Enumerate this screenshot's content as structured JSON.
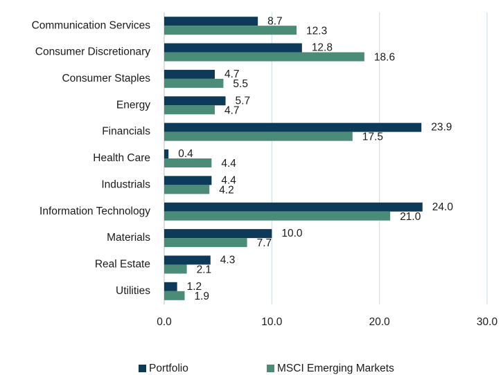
{
  "chart_data": {
    "type": "hbar",
    "categories": [
      "Communication Services",
      "Consumer Discretionary",
      "Consumer Staples",
      "Energy",
      "Financials",
      "Health Care",
      "Industrials",
      "Information Technology",
      "Materials",
      "Real Estate",
      "Utilities"
    ],
    "series": [
      {
        "name": "Portfolio",
        "color": "#0d3a58",
        "values": [
          8.7,
          12.8,
          4.7,
          5.7,
          23.9,
          0.4,
          4.4,
          24.0,
          10.0,
          4.3,
          1.2
        ],
        "value_labels": [
          "8.7",
          "12.8",
          "4.7",
          "5.7",
          "23.9",
          "0.4",
          "4.4",
          "24.0",
          "10.0",
          "4.3",
          "1.2"
        ]
      },
      {
        "name": "MSCI Emerging Markets",
        "color": "#4a8c78",
        "values": [
          12.3,
          18.6,
          5.5,
          4.7,
          17.5,
          4.4,
          4.2,
          21.0,
          7.7,
          2.1,
          1.9
        ],
        "value_labels": [
          "12.3",
          "18.6",
          "5.5",
          "4.7",
          "17.5",
          "4.4",
          "4.2",
          "21.0",
          "7.7",
          "2.1",
          "1.9"
        ]
      }
    ],
    "xlim": [
      0,
      30
    ],
    "xticks": [
      {
        "value": 0,
        "label": "0.0"
      },
      {
        "value": 10,
        "label": "10.0"
      },
      {
        "value": 20,
        "label": "20.0"
      },
      {
        "value": 30,
        "label": "30.0"
      }
    ],
    "grid": true,
    "legend": "bottom"
  }
}
